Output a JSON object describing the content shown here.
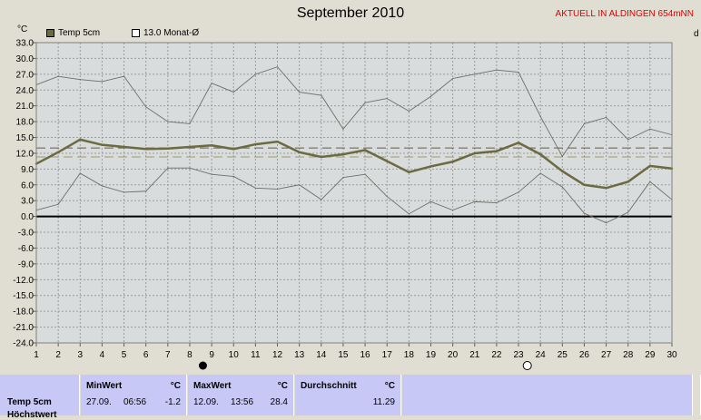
{
  "header": {
    "title": "September 2010",
    "status": "AKTUELL IN ALDINGEN 654mNN",
    "unit": "°C",
    "right_cut": "d"
  },
  "legend": [
    {
      "label": "Temp 5cm",
      "color": "#6b6a40"
    },
    {
      "label": "13.0 Monat-Ø",
      "color": "#ffffff"
    }
  ],
  "moon_icons": [
    "new-moon-icon",
    "full-moon-icon"
  ],
  "colors": {
    "plot_bg": "#d9dcdc",
    "main_line": "#6b6a40",
    "minmax_line": "#6e6e66",
    "zero_line": "#000000",
    "avg_line": "#6d5a40",
    "ref_line": "#9a9a66"
  },
  "chart_data": {
    "type": "line",
    "title": "September 2010",
    "ylabel": "°C",
    "x": [
      1,
      2,
      3,
      4,
      5,
      6,
      7,
      8,
      9,
      10,
      11,
      12,
      13,
      14,
      15,
      16,
      17,
      18,
      19,
      20,
      21,
      22,
      23,
      24,
      25,
      26,
      27,
      28,
      29,
      30
    ],
    "xlim": [
      1,
      30
    ],
    "ylim": [
      -24,
      33
    ],
    "yticks": [
      "33.0",
      "30.0",
      "27.0",
      "24.0",
      "21.0",
      "18.0",
      "15.0",
      "12.0",
      "9.0",
      "6.0",
      "3.0",
      "0.0",
      "-3.0",
      "-6.0",
      "-9.0",
      "-12.0",
      "-15.0",
      "-18.0",
      "-21.0",
      "-24.0"
    ],
    "grid": true,
    "reference_lines": [
      13.0,
      11.3
    ],
    "series": [
      {
        "name": "Temp 5cm",
        "role": "mean",
        "values": [
          10.0,
          12.2,
          14.6,
          13.6,
          13.2,
          12.8,
          12.9,
          13.2,
          13.5,
          12.8,
          13.7,
          14.2,
          12.2,
          11.3,
          11.8,
          12.6,
          10.5,
          8.4,
          9.5,
          10.4,
          12.0,
          12.4,
          14.0,
          11.8,
          8.6,
          6.0,
          5.4,
          6.6,
          9.6,
          9.1
        ]
      },
      {
        "role": "max",
        "values": [
          25.0,
          26.6,
          26.0,
          25.6,
          26.6,
          20.8,
          18.0,
          17.6,
          25.3,
          23.6,
          27.0,
          28.4,
          23.6,
          23.0,
          16.6,
          21.6,
          22.4,
          20.0,
          22.8,
          26.2,
          27.0,
          27.8,
          27.4,
          19.0,
          11.4,
          17.6,
          18.8,
          14.6,
          16.6,
          15.5
        ]
      },
      {
        "role": "min",
        "values": [
          1.2,
          2.3,
          8.2,
          5.8,
          4.6,
          4.8,
          9.2,
          9.2,
          8.0,
          7.6,
          5.4,
          5.2,
          6.0,
          3.2,
          7.4,
          8.0,
          3.8,
          0.5,
          2.8,
          1.2,
          2.8,
          2.6,
          4.6,
          8.2,
          5.6,
          0.6,
          -1.2,
          0.8,
          6.6,
          3.2
        ]
      }
    ]
  },
  "stats": {
    "name": "Temp 5cm",
    "name_cut": "Höchstwert",
    "min": {
      "label": "MinWert",
      "unit": "°C",
      "date": "27.09.",
      "time": "06:56",
      "value": "-1.2"
    },
    "max": {
      "label": "MaxWert",
      "unit": "°C",
      "date": "12.09.",
      "time": "13:56",
      "value": "28.4"
    },
    "avg": {
      "label": "Durchschnitt",
      "unit": "°C",
      "value": "11.29"
    }
  }
}
